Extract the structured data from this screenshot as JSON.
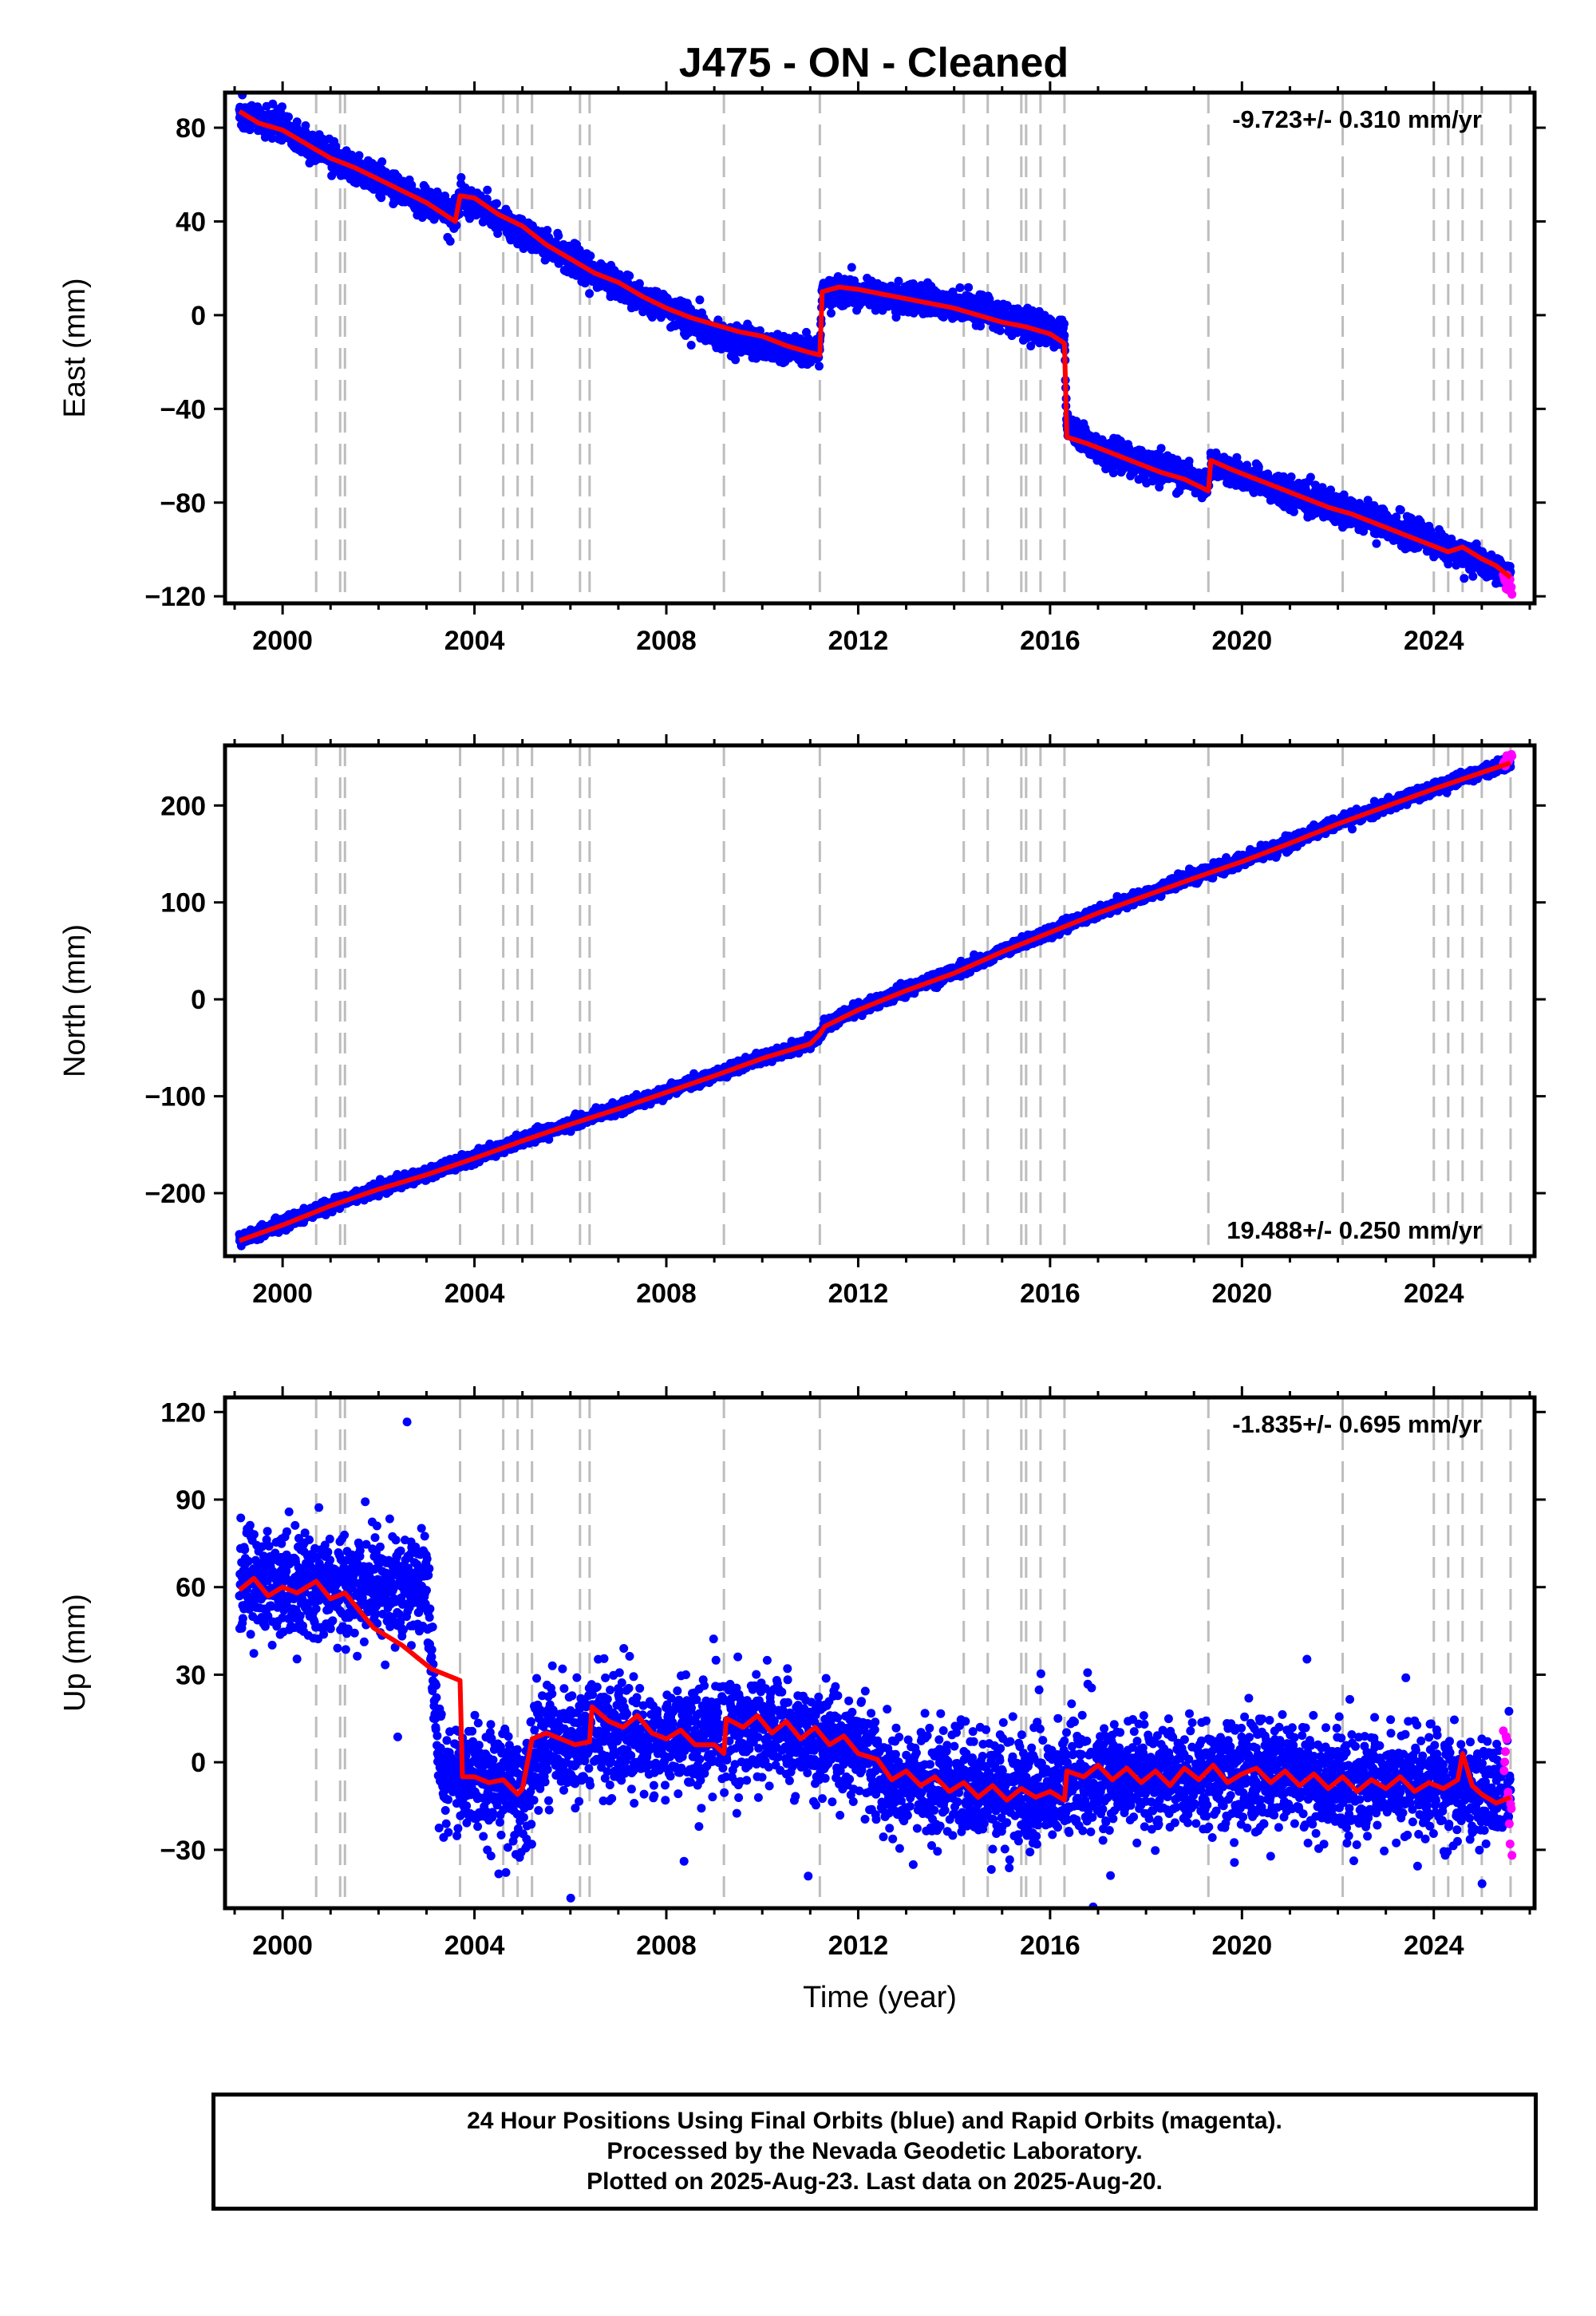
{
  "title": "J475  - ON - Cleaned",
  "colors": {
    "final_orbits": "#0000ff",
    "rapid_orbits": "#ff00ff",
    "model": "#ff0000",
    "offset_lines": "#bdbdbd",
    "frame": "#000000"
  },
  "chart_data": [
    {
      "type": "scatter",
      "panel": "east",
      "ylabel": "East (mm)",
      "rate_label": "-9.723+/- 0.310 mm/yr",
      "rate_label_placement": "top-right",
      "xlim": [
        1998.8,
        2026.1
      ],
      "ylim": [
        -123,
        95
      ],
      "yticks": [
        80,
        40,
        0,
        -40,
        -80,
        -120
      ],
      "xticks": [
        2000,
        2004,
        2008,
        2012,
        2016,
        2020,
        2024
      ],
      "xlabel": "",
      "grid": false,
      "offset_epochs": [
        2000.7,
        2001.2,
        2001.3,
        2003.7,
        2004.6,
        2004.9,
        2005.2,
        2006.2,
        2006.4,
        2009.2,
        2011.2,
        2014.2,
        2014.7,
        2015.4,
        2015.5,
        2015.8,
        2016.3,
        2019.3,
        2022.1,
        2024.0,
        2024.3,
        2024.6,
        2025.0,
        2025.6
      ],
      "series": [
        {
          "role": "final_orbits",
          "style": "points",
          "scatter_sd": 3,
          "x": [
            1999.1,
            2000.0,
            2001.0,
            2002.0,
            2003.0,
            2003.6,
            2003.7,
            2004.0,
            2005.0,
            2006.0,
            2007.0,
            2008.0,
            2009.0,
            2010.0,
            2011.0,
            2011.2,
            2011.25,
            2012.0,
            2013.0,
            2014.0,
            2015.0,
            2016.0,
            2016.3,
            2016.35,
            2017.0,
            2018.0,
            2019.0,
            2019.3,
            2019.35,
            2020.0,
            2021.0,
            2022.0,
            2023.0,
            2024.0,
            2025.0,
            2025.6
          ],
          "y": [
            86,
            80,
            68,
            57,
            48,
            42,
            50,
            48,
            35,
            25,
            12,
            3,
            -8,
            -13,
            -15,
            -15,
            10,
            9,
            7,
            5,
            0,
            -7,
            -10,
            -48,
            -57,
            -64,
            -70,
            -73,
            -63,
            -68,
            -77,
            -82,
            -90,
            -97,
            -105,
            -112
          ]
        },
        {
          "role": "rapid_orbits",
          "style": "points",
          "scatter_sd": 2,
          "x": [
            2025.45,
            2025.5,
            2025.55,
            2025.6,
            2025.63
          ],
          "y": [
            -111,
            -113,
            -114,
            -115,
            -117
          ]
        },
        {
          "role": "model",
          "style": "line",
          "x": [
            1999.1,
            1999.5,
            2000.0,
            2000.5,
            2001.0,
            2001.5,
            2002.0,
            2002.5,
            2003.0,
            2003.6,
            2003.7,
            2004.0,
            2004.5,
            2005.0,
            2005.5,
            2006.0,
            2006.5,
            2007.0,
            2007.5,
            2008.0,
            2008.5,
            2009.0,
            2009.5,
            2010.0,
            2010.5,
            2011.0,
            2011.2,
            2011.25,
            2011.6,
            2012.0,
            2012.5,
            2013.0,
            2013.5,
            2014.0,
            2014.5,
            2015.0,
            2015.5,
            2016.0,
            2016.3,
            2016.35,
            2016.8,
            2017.3,
            2017.8,
            2018.3,
            2018.8,
            2019.3,
            2019.35,
            2019.8,
            2020.3,
            2020.8,
            2021.3,
            2021.8,
            2022.3,
            2022.8,
            2023.3,
            2023.8,
            2024.3,
            2024.6,
            2025.0,
            2025.3,
            2025.6
          ],
          "y": [
            87,
            82,
            79,
            73,
            67,
            63,
            58,
            53,
            48,
            40,
            51,
            50,
            43,
            38,
            30,
            24,
            18,
            14,
            8,
            3,
            -1,
            -4,
            -7,
            -9,
            -13,
            -16,
            -17,
            10,
            12,
            11,
            9,
            7,
            5,
            3,
            0,
            -3,
            -5,
            -8,
            -12,
            -52,
            -55,
            -59,
            -63,
            -67,
            -70,
            -75,
            -62,
            -66,
            -70,
            -74,
            -78,
            -82,
            -85,
            -89,
            -93,
            -97,
            -101,
            -99,
            -104,
            -107,
            -112
          ]
        }
      ]
    },
    {
      "type": "scatter",
      "panel": "north",
      "ylabel": "North (mm)",
      "rate_label": "19.488+/- 0.250 mm/yr",
      "rate_label_placement": "bottom-right",
      "xlim": [
        1998.8,
        2026.1
      ],
      "ylim": [
        -265,
        262
      ],
      "yticks": [
        200,
        100,
        0,
        -100,
        -200
      ],
      "xticks": [
        2000,
        2004,
        2008,
        2012,
        2016,
        2020,
        2024
      ],
      "xlabel": "",
      "grid": false,
      "offset_epochs": [
        2000.7,
        2001.2,
        2001.3,
        2003.7,
        2004.6,
        2004.9,
        2005.2,
        2006.2,
        2006.4,
        2009.2,
        2011.2,
        2014.2,
        2014.7,
        2015.4,
        2015.5,
        2015.8,
        2016.3,
        2019.3,
        2022.1,
        2024.0,
        2024.3,
        2024.6,
        2025.0,
        2025.6
      ],
      "series": [
        {
          "role": "final_orbits",
          "style": "points",
          "scatter_sd": 3,
          "x": [
            1999.1,
            2000.0,
            2001.0,
            2002.0,
            2003.0,
            2004.0,
            2005.0,
            2006.0,
            2007.0,
            2008.0,
            2009.0,
            2010.0,
            2011.0,
            2011.2,
            2011.3,
            2012.0,
            2013.0,
            2014.0,
            2015.0,
            2016.0,
            2017.0,
            2018.0,
            2019.0,
            2020.0,
            2021.0,
            2022.0,
            2023.0,
            2024.0,
            2025.0,
            2025.6
          ],
          "y": [
            -248,
            -232,
            -212,
            -195,
            -180,
            -163,
            -145,
            -128,
            -112,
            -95,
            -78,
            -60,
            -45,
            -35,
            -27,
            -10,
            10,
            28,
            50,
            70,
            90,
            108,
            126,
            143,
            162,
            182,
            200,
            218,
            235,
            245
          ]
        },
        {
          "role": "rapid_orbits",
          "style": "points",
          "scatter_sd": 2,
          "x": [
            2025.45,
            2025.5,
            2025.55,
            2025.6,
            2025.63
          ],
          "y": [
            244,
            246,
            248,
            250,
            252
          ]
        },
        {
          "role": "model",
          "style": "line",
          "x": [
            1999.1,
            2000.0,
            2001.0,
            2002.0,
            2003.0,
            2004.0,
            2005.0,
            2006.0,
            2007.0,
            2008.0,
            2009.0,
            2010.0,
            2011.0,
            2011.2,
            2011.3,
            2012.0,
            2013.0,
            2014.0,
            2015.0,
            2016.0,
            2017.0,
            2018.0,
            2019.0,
            2020.0,
            2021.0,
            2022.0,
            2023.0,
            2024.0,
            2025.0,
            2025.6
          ],
          "y": [
            -249,
            -233,
            -213,
            -196,
            -181,
            -164,
            -146,
            -129,
            -113,
            -96,
            -79,
            -61,
            -46,
            -36,
            -28,
            -11,
            9,
            27,
            49,
            69,
            89,
            107,
            125,
            142,
            161,
            181,
            199,
            217,
            234,
            244
          ]
        }
      ]
    },
    {
      "type": "scatter",
      "panel": "up",
      "ylabel": "Up (mm)",
      "rate_label": "-1.835+/- 0.695 mm/yr",
      "rate_label_placement": "top-right",
      "xlim": [
        1998.8,
        2026.1
      ],
      "ylim": [
        -50,
        125
      ],
      "yticks": [
        120,
        90,
        60,
        30,
        0,
        -30
      ],
      "xticks": [
        2000,
        2004,
        2008,
        2012,
        2016,
        2020,
        2024
      ],
      "xlabel": "Time (year)",
      "grid": false,
      "offset_epochs": [
        2000.7,
        2001.2,
        2001.3,
        2003.7,
        2004.6,
        2004.9,
        2005.2,
        2006.2,
        2006.4,
        2009.2,
        2011.2,
        2014.2,
        2014.7,
        2015.4,
        2015.5,
        2015.8,
        2016.3,
        2019.3,
        2022.1,
        2024.0,
        2024.3,
        2024.6,
        2025.0,
        2025.6
      ],
      "series": [
        {
          "role": "final_orbits",
          "style": "points",
          "scatter_sd": 9,
          "x": [
            1999.1,
            2000.0,
            2001.0,
            2002.0,
            2003.0,
            2003.3,
            2004.0,
            2005.0,
            2005.5,
            2006.0,
            2006.5,
            2007.0,
            2008.0,
            2009.0,
            2010.0,
            2011.0,
            2012.0,
            2012.7,
            2013.0,
            2014.0,
            2015.0,
            2016.0,
            2017.0,
            2018.0,
            2019.0,
            2020.0,
            2021.0,
            2022.0,
            2023.0,
            2024.0,
            2025.0,
            2025.6
          ],
          "y": [
            60,
            62,
            60,
            60,
            60,
            -5,
            -5,
            -8,
            8,
            5,
            12,
            10,
            8,
            10,
            12,
            8,
            5,
            -8,
            -6,
            -8,
            -10,
            -10,
            -5,
            -5,
            -5,
            -5,
            -5,
            -6,
            -7,
            -8,
            -10,
            -12
          ]
        },
        {
          "role": "rapid_orbits",
          "style": "points",
          "scatter_sd": 6,
          "x": [
            2025.45,
            2025.5,
            2025.55,
            2025.6,
            2025.63
          ],
          "y": [
            8,
            0,
            -10,
            -15,
            -22
          ]
        },
        {
          "role": "model",
          "style": "line",
          "x": [
            1999.1,
            1999.4,
            1999.7,
            2000.0,
            2000.3,
            2000.7,
            2001.0,
            2001.3,
            2001.6,
            2001.9,
            2002.2,
            2002.5,
            2002.8,
            2003.1,
            2003.4,
            2003.7,
            2003.75,
            2004.0,
            2004.3,
            2004.6,
            2004.9,
            2005.0,
            2005.2,
            2005.5,
            2005.8,
            2006.1,
            2006.4,
            2006.45,
            2006.8,
            2007.1,
            2007.4,
            2007.7,
            2008.0,
            2008.3,
            2008.6,
            2009.0,
            2009.2,
            2009.25,
            2009.6,
            2009.9,
            2010.2,
            2010.5,
            2010.8,
            2011.1,
            2011.4,
            2011.7,
            2012.0,
            2012.4,
            2012.7,
            2013.0,
            2013.3,
            2013.6,
            2013.9,
            2014.2,
            2014.5,
            2014.8,
            2015.1,
            2015.4,
            2015.7,
            2016.0,
            2016.3,
            2016.35,
            2016.7,
            2017.0,
            2017.3,
            2017.6,
            2017.9,
            2018.2,
            2018.5,
            2018.8,
            2019.1,
            2019.4,
            2019.7,
            2020.0,
            2020.3,
            2020.6,
            2020.9,
            2021.2,
            2021.5,
            2021.8,
            2022.1,
            2022.4,
            2022.7,
            2023.0,
            2023.3,
            2023.6,
            2023.9,
            2024.2,
            2024.5,
            2024.6,
            2024.8,
            2025.0,
            2025.3,
            2025.6
          ],
          "y": [
            59,
            63,
            57,
            60,
            58,
            62,
            56,
            58,
            52,
            46,
            43,
            40,
            36,
            32,
            30,
            28,
            -5,
            -5,
            -7,
            -6,
            -11,
            -9,
            8,
            10,
            8,
            6,
            7,
            19,
            14,
            12,
            16,
            10,
            8,
            11,
            6,
            6,
            3,
            15,
            12,
            16,
            10,
            14,
            8,
            12,
            6,
            9,
            3,
            1,
            -6,
            -3,
            -8,
            -5,
            -10,
            -7,
            -12,
            -8,
            -13,
            -9,
            -12,
            -10,
            -13,
            -3,
            -5,
            -1,
            -6,
            -2,
            -7,
            -3,
            -8,
            -2,
            -6,
            -1,
            -7,
            -4,
            -2,
            -7,
            -3,
            -8,
            -4,
            -9,
            -5,
            -10,
            -6,
            -9,
            -5,
            -10,
            -7,
            -9,
            -6,
            3,
            -8,
            -11,
            -14,
            -12
          ]
        }
      ]
    }
  ],
  "footer": {
    "line1": "24 Hour Positions Using Final Orbits (blue) and Rapid Orbits (magenta).",
    "line2": "Processed by the Nevada Geodetic Laboratory.",
    "line3": "Plotted on 2025-Aug-23. Last data on 2025-Aug-20."
  }
}
